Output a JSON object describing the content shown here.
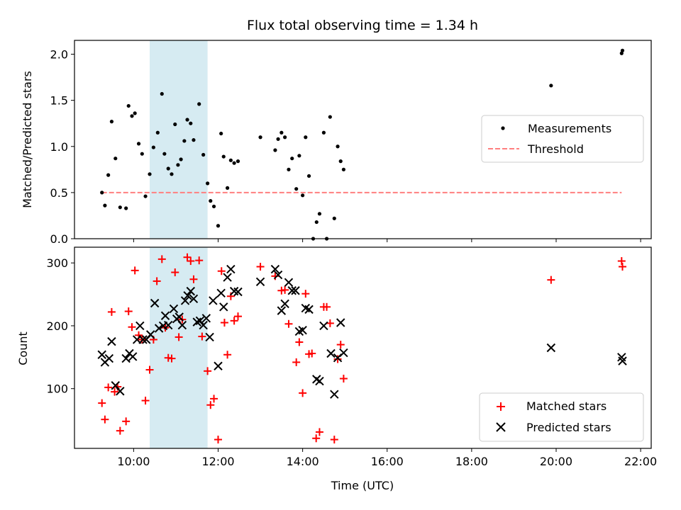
{
  "figure_title": "Flux total observing time = 1.34 h",
  "colors": {
    "shade": "#add8e6",
    "threshold": "#ff7f7f",
    "measurement": "#000000",
    "matched": "#ff0000",
    "predicted": "#000000"
  },
  "chart_data": [
    {
      "type": "scatter",
      "panel": "top",
      "ylabel": "Matched/Predicted stars",
      "xlabel": "",
      "xlim": [
        8.6,
        22.25
      ],
      "ylim": [
        0,
        2.15
      ],
      "yticks": [
        "0.0",
        "0.5",
        "1.0",
        "1.5",
        "2.0"
      ],
      "ytick_values": [
        0,
        0.5,
        1.0,
        1.5,
        2.0
      ],
      "xtick_values": [
        10,
        12,
        14,
        16,
        18,
        20,
        22
      ],
      "shaded_span": [
        10.38,
        11.75
      ],
      "threshold": {
        "name": "Threshold",
        "value": 0.5,
        "x_range": [
          9.25,
          21.55
        ]
      },
      "legend": {
        "position": "center-right",
        "entries": [
          "Measurements",
          "Threshold"
        ]
      },
      "series": [
        {
          "name": "Measurements",
          "points": [
            [
              9.25,
              0.5
            ],
            [
              9.32,
              0.36
            ],
            [
              9.4,
              0.69
            ],
            [
              9.48,
              1.27
            ],
            [
              9.57,
              0.87
            ],
            [
              9.68,
              0.34
            ],
            [
              9.82,
              0.33
            ],
            [
              9.88,
              1.44
            ],
            [
              9.96,
              1.33
            ],
            [
              10.03,
              1.36
            ],
            [
              10.12,
              1.03
            ],
            [
              10.2,
              0.92
            ],
            [
              10.28,
              0.46
            ],
            [
              10.38,
              0.7
            ],
            [
              10.47,
              0.99
            ],
            [
              10.57,
              1.15
            ],
            [
              10.67,
              1.57
            ],
            [
              10.73,
              0.92
            ],
            [
              10.82,
              0.76
            ],
            [
              10.9,
              0.7
            ],
            [
              10.98,
              1.24
            ],
            [
              11.05,
              0.8
            ],
            [
              11.12,
              0.86
            ],
            [
              11.2,
              1.06
            ],
            [
              11.27,
              1.29
            ],
            [
              11.35,
              1.25
            ],
            [
              11.42,
              1.07
            ],
            [
              11.55,
              1.46
            ],
            [
              11.65,
              0.91
            ],
            [
              11.75,
              0.6
            ],
            [
              11.82,
              0.41
            ],
            [
              11.9,
              0.35
            ],
            [
              12.0,
              0.14
            ],
            [
              12.07,
              1.14
            ],
            [
              12.13,
              0.89
            ],
            [
              12.22,
              0.55
            ],
            [
              12.3,
              0.85
            ],
            [
              12.38,
              0.82
            ],
            [
              12.47,
              0.84
            ],
            [
              13.0,
              1.1
            ],
            [
              13.35,
              0.96
            ],
            [
              13.42,
              1.08
            ],
            [
              13.5,
              1.15
            ],
            [
              13.58,
              1.1
            ],
            [
              13.67,
              0.75
            ],
            [
              13.75,
              0.87
            ],
            [
              13.85,
              0.54
            ],
            [
              13.92,
              0.9
            ],
            [
              14.0,
              0.47
            ],
            [
              14.07,
              1.1
            ],
            [
              14.15,
              0.68
            ],
            [
              14.25,
              0.0
            ],
            [
              14.33,
              0.18
            ],
            [
              14.4,
              0.27
            ],
            [
              14.5,
              1.15
            ],
            [
              14.57,
              0.0
            ],
            [
              14.65,
              1.32
            ],
            [
              14.75,
              0.22
            ],
            [
              14.83,
              1.0
            ],
            [
              14.9,
              0.84
            ],
            [
              14.97,
              0.75
            ],
            [
              19.88,
              1.66
            ],
            [
              21.55,
              2.01
            ],
            [
              21.57,
              2.04
            ]
          ]
        }
      ]
    },
    {
      "type": "scatter",
      "panel": "bottom",
      "ylabel": "Count",
      "xlabel": "Time (UTC)",
      "xlim": [
        8.6,
        22.25
      ],
      "ylim": [
        5,
        325
      ],
      "yticks": [
        "100",
        "200",
        "300"
      ],
      "ytick_values": [
        100,
        200,
        300
      ],
      "xticks": [
        "10:00",
        "12:00",
        "14:00",
        "16:00",
        "18:00",
        "20:00",
        "22:00"
      ],
      "xtick_values": [
        10,
        12,
        14,
        16,
        18,
        20,
        22
      ],
      "shaded_span": [
        10.38,
        11.75
      ],
      "legend": {
        "position": "bottom-right",
        "entries": [
          "Matched stars",
          "Predicted stars"
        ]
      },
      "series": [
        {
          "name": "Matched stars",
          "marker": "plus",
          "points": [
            [
              9.25,
              77
            ],
            [
              9.32,
              51
            ],
            [
              9.4,
              102
            ],
            [
              9.48,
              222
            ],
            [
              9.55,
              95
            ],
            [
              9.62,
              103
            ],
            [
              9.68,
              33
            ],
            [
              9.82,
              48
            ],
            [
              9.88,
              223
            ],
            [
              9.96,
              198
            ],
            [
              10.03,
              288
            ],
            [
              10.12,
              185
            ],
            [
              10.2,
              178
            ],
            [
              10.28,
              81
            ],
            [
              10.38,
              130
            ],
            [
              10.47,
              178
            ],
            [
              10.55,
              271
            ],
            [
              10.67,
              306
            ],
            [
              10.75,
              197
            ],
            [
              10.82,
              149
            ],
            [
              10.9,
              148
            ],
            [
              10.98,
              285
            ],
            [
              11.07,
              182
            ],
            [
              11.15,
              210
            ],
            [
              11.27,
              309
            ],
            [
              11.35,
              303
            ],
            [
              11.42,
              274
            ],
            [
              11.55,
              304
            ],
            [
              11.62,
              183
            ],
            [
              11.75,
              128
            ],
            [
              11.82,
              74
            ],
            [
              11.9,
              84
            ],
            [
              12.0,
              19
            ],
            [
              12.08,
              287
            ],
            [
              12.15,
              205
            ],
            [
              12.22,
              154
            ],
            [
              12.3,
              247
            ],
            [
              12.38,
              208
            ],
            [
              12.47,
              215
            ],
            [
              13.0,
              294
            ],
            [
              13.35,
              279
            ],
            [
              13.5,
              256
            ],
            [
              13.58,
              257
            ],
            [
              13.67,
              203
            ],
            [
              13.85,
              142
            ],
            [
              13.92,
              174
            ],
            [
              14.0,
              93
            ],
            [
              14.07,
              251
            ],
            [
              14.15,
              155
            ],
            [
              14.22,
              156
            ],
            [
              14.32,
              21
            ],
            [
              14.4,
              31
            ],
            [
              14.5,
              230
            ],
            [
              14.57,
              230
            ],
            [
              14.65,
              204
            ],
            [
              14.75,
              19
            ],
            [
              14.83,
              147
            ],
            [
              14.9,
              170
            ],
            [
              14.97,
              116
            ],
            [
              19.88,
              273
            ],
            [
              21.55,
              303
            ],
            [
              21.57,
              294
            ]
          ]
        },
        {
          "name": "Predicted stars",
          "marker": "x",
          "points": [
            [
              9.25,
              154
            ],
            [
              9.32,
              142
            ],
            [
              9.42,
              148
            ],
            [
              9.48,
              175
            ],
            [
              9.57,
              105
            ],
            [
              9.68,
              96
            ],
            [
              9.82,
              148
            ],
            [
              9.9,
              156
            ],
            [
              9.98,
              151
            ],
            [
              10.08,
              178
            ],
            [
              10.15,
              200
            ],
            [
              10.22,
              178
            ],
            [
              10.3,
              178
            ],
            [
              10.4,
              186
            ],
            [
              10.5,
              236
            ],
            [
              10.6,
              196
            ],
            [
              10.7,
              200
            ],
            [
              10.75,
              216
            ],
            [
              10.82,
              201
            ],
            [
              10.95,
              227
            ],
            [
              11.02,
              211
            ],
            [
              11.08,
              214
            ],
            [
              11.15,
              201
            ],
            [
              11.22,
              240
            ],
            [
              11.28,
              248
            ],
            [
              11.35,
              255
            ],
            [
              11.42,
              243
            ],
            [
              11.5,
              206
            ],
            [
              11.57,
              208
            ],
            [
              11.65,
              201
            ],
            [
              11.72,
              212
            ],
            [
              11.8,
              182
            ],
            [
              11.88,
              240
            ],
            [
              12.0,
              136
            ],
            [
              12.07,
              252
            ],
            [
              12.13,
              230
            ],
            [
              12.22,
              277
            ],
            [
              12.3,
              290
            ],
            [
              12.38,
              255
            ],
            [
              12.47,
              254
            ],
            [
              13.0,
              270
            ],
            [
              13.35,
              290
            ],
            [
              13.42,
              281
            ],
            [
              13.5,
              224
            ],
            [
              13.58,
              235
            ],
            [
              13.67,
              269
            ],
            [
              13.75,
              256
            ],
            [
              13.83,
              256
            ],
            [
              13.92,
              191
            ],
            [
              14.0,
              193
            ],
            [
              14.07,
              228
            ],
            [
              14.15,
              226
            ],
            [
              14.33,
              115
            ],
            [
              14.4,
              112
            ],
            [
              14.5,
              200
            ],
            [
              14.67,
              156
            ],
            [
              14.75,
              91
            ],
            [
              14.83,
              149
            ],
            [
              14.9,
              205
            ],
            [
              14.97,
              157
            ],
            [
              19.88,
              165
            ],
            [
              21.55,
              150
            ],
            [
              21.57,
              144
            ]
          ]
        }
      ]
    }
  ]
}
